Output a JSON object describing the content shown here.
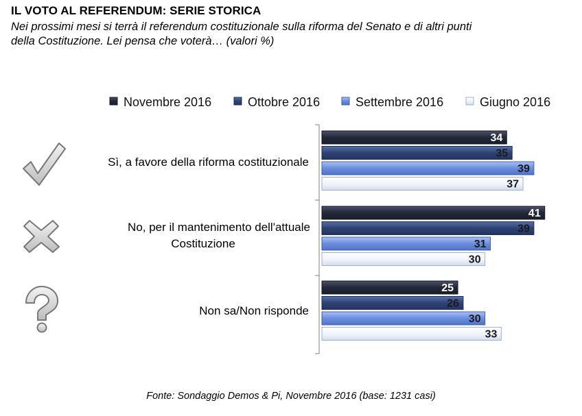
{
  "header": {
    "title": "IL VOTO AL REFERENDUM: SERIE STORICA",
    "subtitle_line1": "Nei prossimi mesi si terrà il referendum costituzionale sulla riforma del Senato e di altri punti",
    "subtitle_line2": "della Costituzione. Lei pensa che voterà… (valori %)"
  },
  "footer": {
    "source": "Fonte: Sondaggio Demos & Pi, Novembre 2016 (base: 1231 casi)"
  },
  "colors": {
    "nov_2016": "#2b3142",
    "ott_2016": "#34487a",
    "set_2016": "#6f92df",
    "giu_2016": "#f2f5fb"
  },
  "icons": [
    "check-icon",
    "cross-icon",
    "question-icon"
  ],
  "chart_data": {
    "type": "bar",
    "orientation": "horizontal",
    "categories": [
      [
        "Sì, a favore della riforma costituzionale"
      ],
      [
        "No, per il mantenimento dell'attuale",
        "Costituzione"
      ],
      [
        "Non sa/Non risponde"
      ]
    ],
    "series": [
      {
        "name": "Novembre 2016",
        "values": [
          34,
          41,
          25
        ]
      },
      {
        "name": "Ottobre 2016",
        "values": [
          35,
          39,
          26
        ]
      },
      {
        "name": "Settembre 2016",
        "values": [
          39,
          31,
          30
        ]
      },
      {
        "name": "Giugno 2016",
        "values": [
          37,
          30,
          33
        ]
      }
    ],
    "xlim": [
      0,
      42
    ],
    "legend_position": "top",
    "grid": false
  }
}
